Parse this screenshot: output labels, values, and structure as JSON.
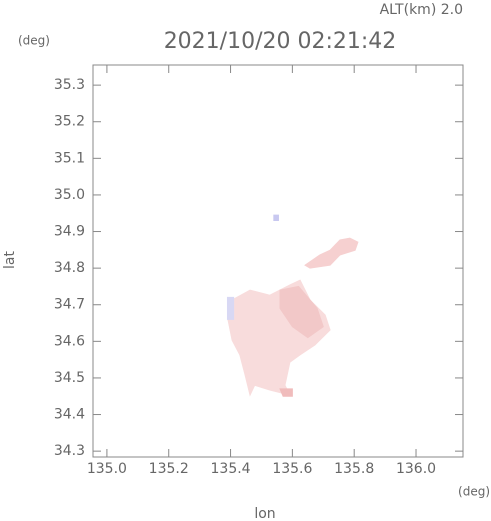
{
  "chart_data": {
    "type": "map",
    "title": "2021/10/20 02:21:42",
    "subtitle": "ALT(km) 2.0",
    "y_unit": "(deg)",
    "x_unit": "(deg)",
    "x_label": "lon",
    "y_label": "lat",
    "xlim": [
      134.955,
      136.152
    ],
    "ylim": [
      34.284,
      35.355
    ],
    "xticks": [
      {
        "value": 135.0,
        "label": "135.0"
      },
      135.2,
      135.4,
      135.6,
      135.8,
      {
        "value": 136.0,
        "label": "136.0"
      }
    ],
    "yticks": [
      35.3,
      35.2,
      35.1,
      {
        "value": 35.0,
        "label": "35.0"
      },
      34.9,
      34.8,
      34.7,
      34.6,
      34.5,
      34.4,
      34.3
    ],
    "regions": [
      {
        "color": "#f8dcdc",
        "lon": [
          135.405,
          135.463,
          135.527,
          135.592,
          135.625,
          135.657,
          135.706,
          135.722,
          135.673,
          135.625,
          135.592,
          135.576,
          135.592,
          135.527,
          135.478,
          135.463,
          135.447,
          135.43,
          135.405,
          135.392
        ],
        "lat": [
          34.713,
          34.74,
          34.726,
          34.754,
          34.767,
          34.713,
          34.672,
          34.631,
          34.59,
          34.563,
          34.543,
          34.48,
          34.453,
          34.467,
          34.48,
          34.453,
          34.508,
          34.563,
          34.603,
          34.658
        ]
      },
      {
        "color": "#f2c8c8",
        "lon": [
          135.56,
          135.62,
          135.68,
          135.7,
          135.65,
          135.6,
          135.56
        ],
        "lat": [
          34.74,
          34.75,
          34.69,
          34.64,
          34.61,
          34.64,
          34.69
        ]
      },
      {
        "color": "#f6d0d0",
        "lon": [
          135.641,
          135.689,
          135.722,
          135.754,
          135.786,
          135.812,
          135.803,
          135.754,
          135.722,
          135.657
        ],
        "lat": [
          34.808,
          34.836,
          34.849,
          34.877,
          34.882,
          34.871,
          34.849,
          34.836,
          34.808,
          34.8
        ]
      },
      {
        "color": "#f0bcbc",
        "lon": [
          135.56,
          135.6,
          135.6,
          135.57
        ],
        "lat": [
          34.47,
          34.47,
          34.45,
          34.45
        ]
      },
      {
        "color": "#d8d8f4",
        "lon": [
          135.39,
          135.41,
          135.41,
          135.39
        ],
        "lat": [
          34.72,
          34.72,
          34.66,
          34.66
        ]
      },
      {
        "color": "#c8c8f0",
        "lon": [
          135.54,
          135.555,
          135.555,
          135.54
        ],
        "lat": [
          34.945,
          34.945,
          34.93,
          34.93
        ]
      }
    ]
  }
}
